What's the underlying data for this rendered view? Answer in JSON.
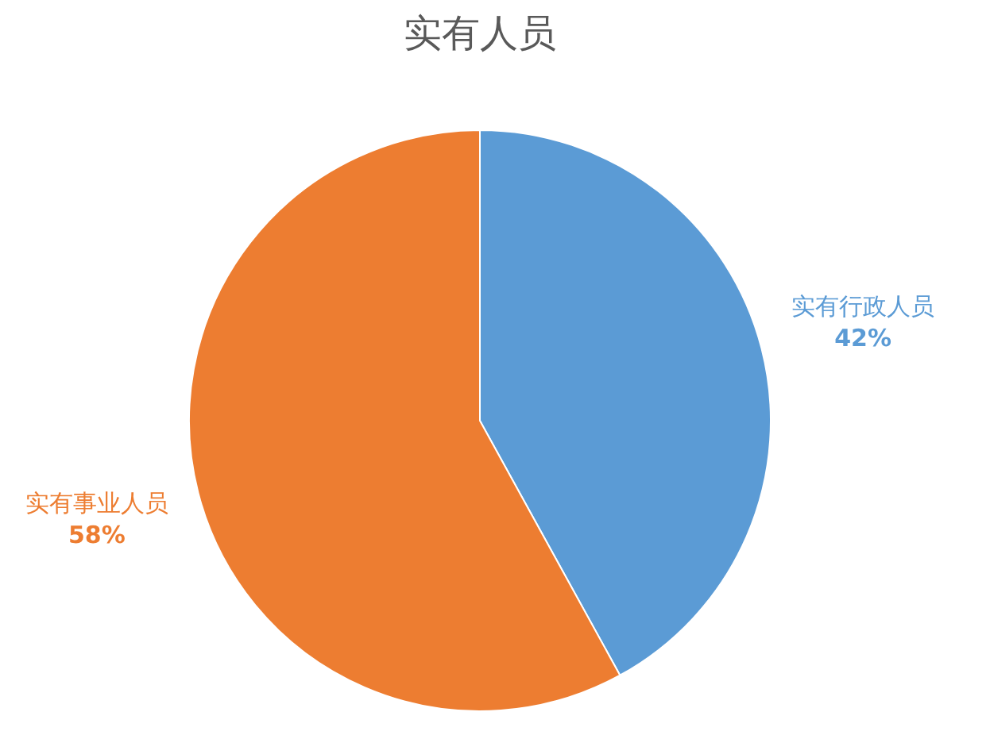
{
  "chart_data": {
    "type": "pie",
    "title": "实有人员",
    "categories": [
      "实有行政人员",
      "实有事业人员"
    ],
    "values": [
      42,
      58
    ],
    "colors": [
      "#5b9bd5",
      "#ed7d31"
    ],
    "value_labels": [
      "42%",
      "58%"
    ]
  }
}
